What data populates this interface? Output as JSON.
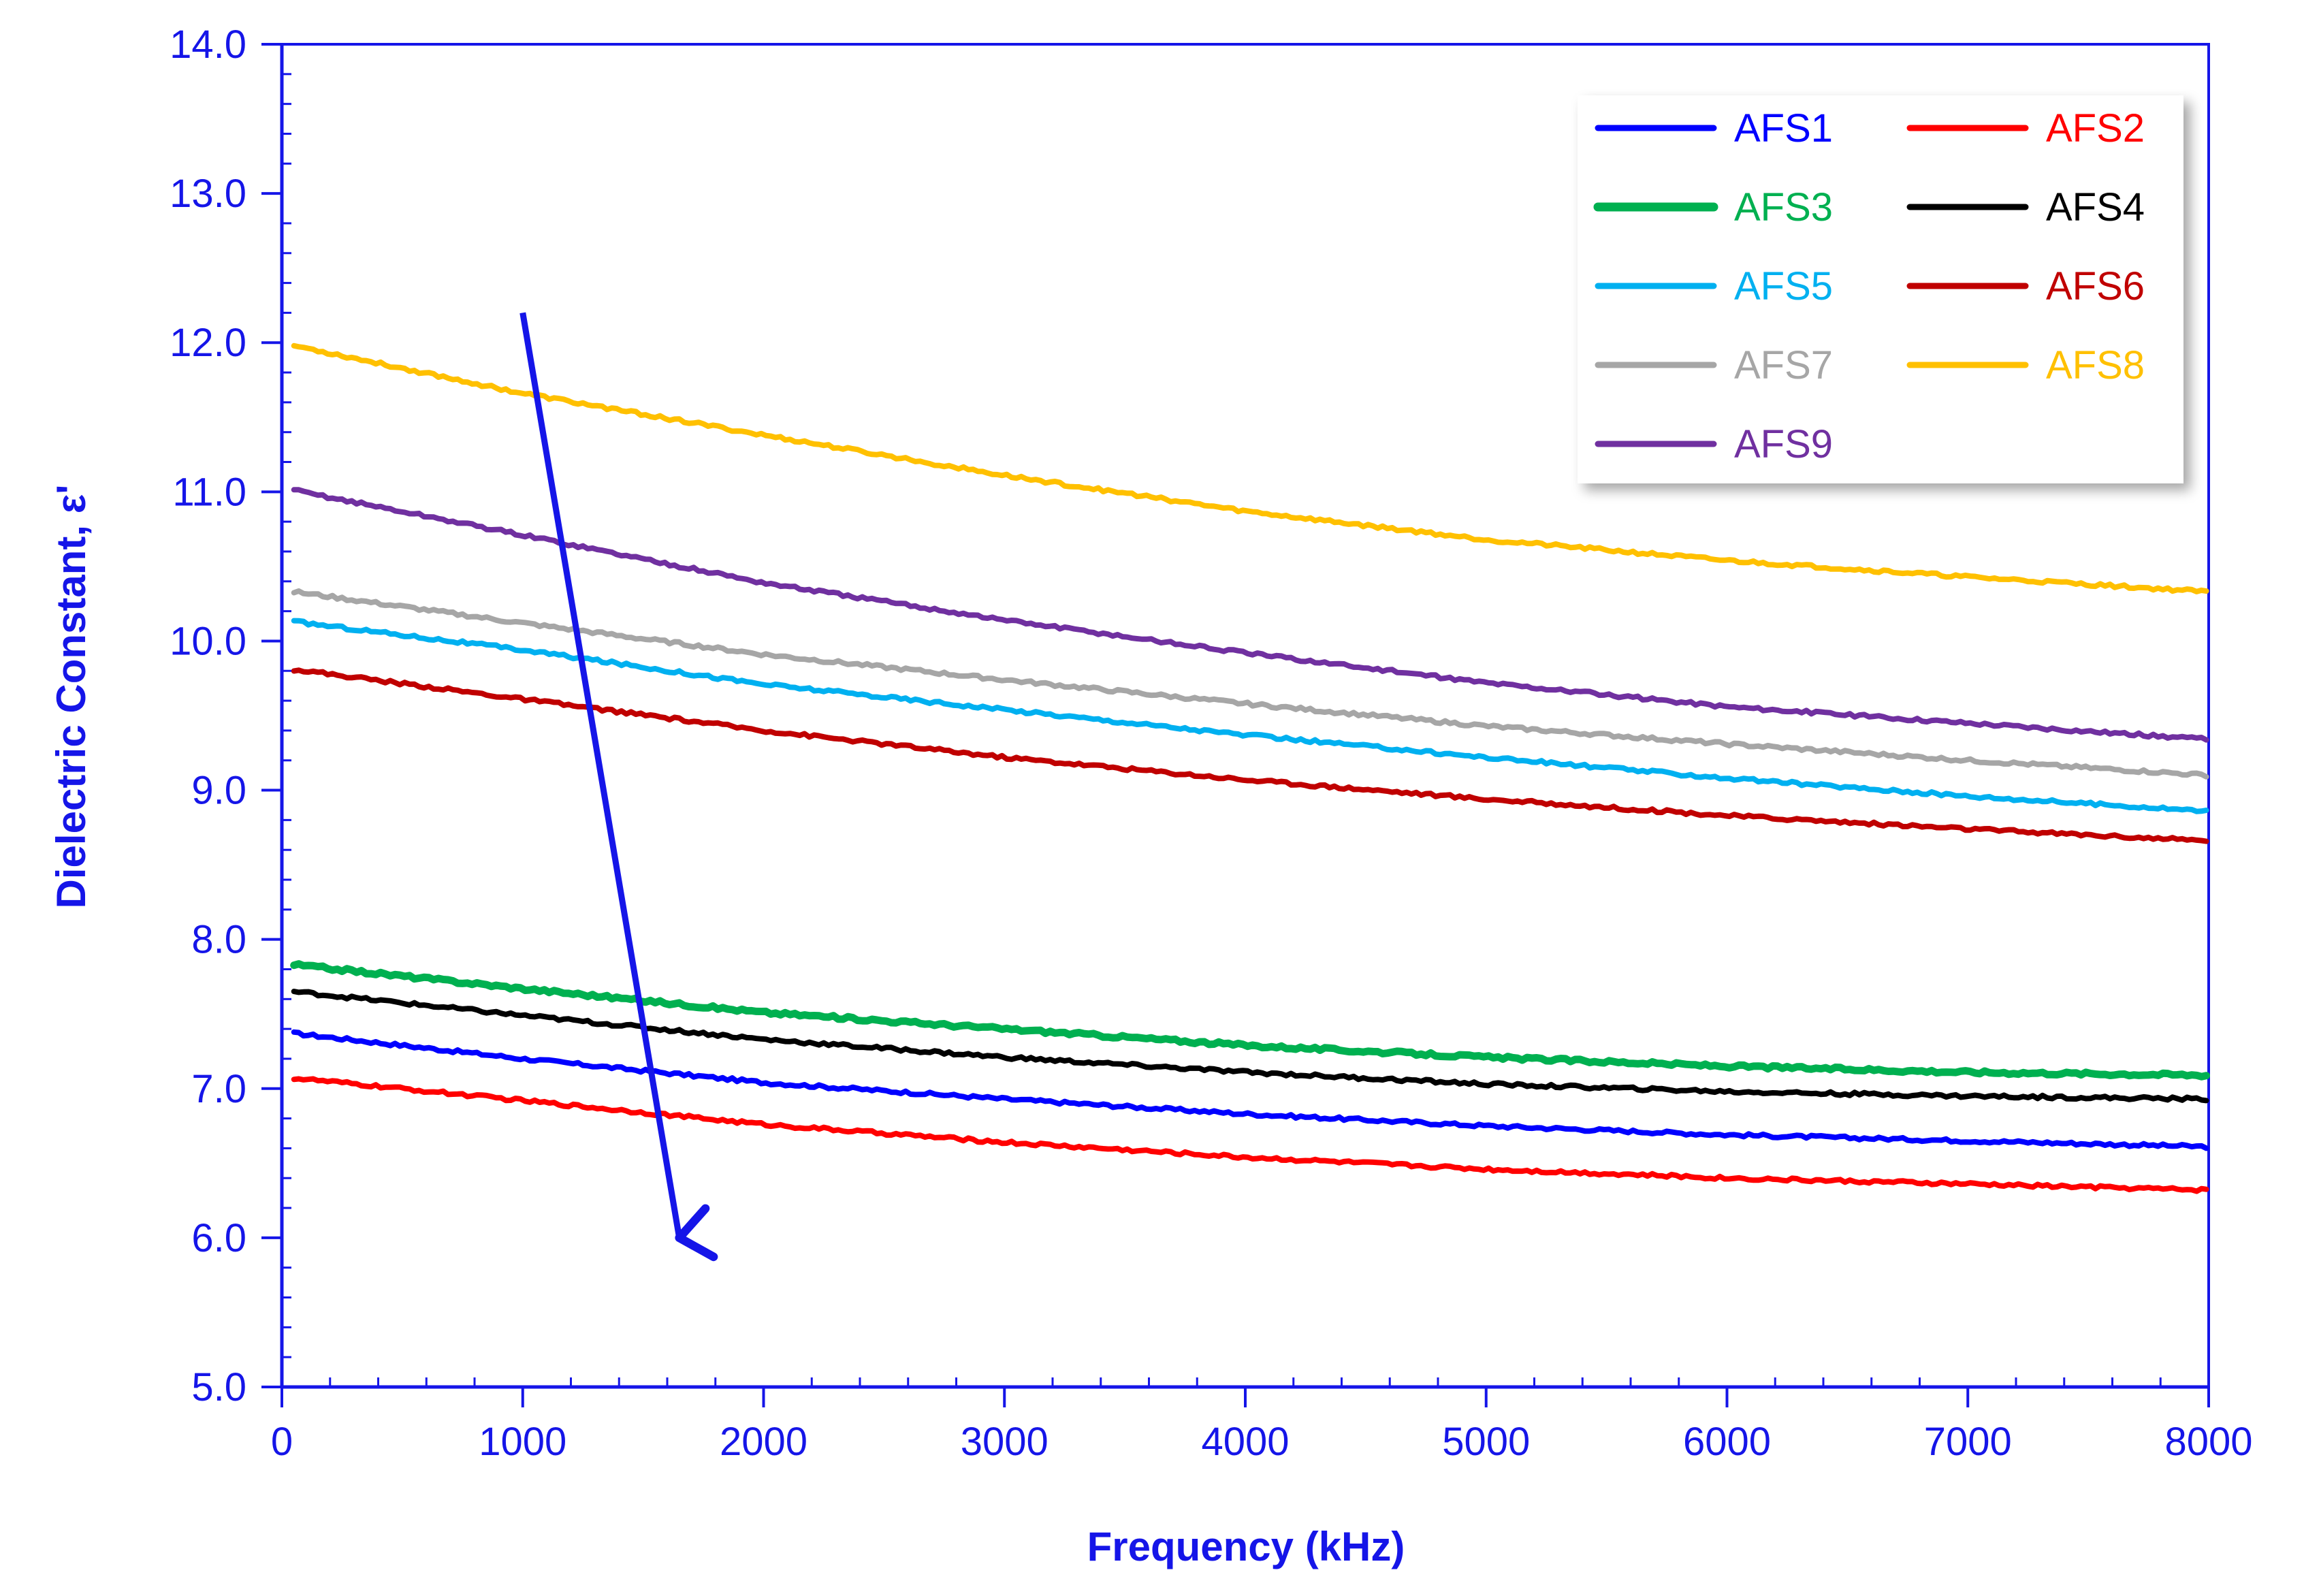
{
  "chart_data": {
    "type": "line",
    "xlabel": "Frequency (kHz)",
    "ylabel": "Dielectric Constant, ε'",
    "xlim": [
      0,
      8000
    ],
    "ylim": [
      5.0,
      14.0
    ],
    "x_ticks": [
      "0",
      "1000",
      "2000",
      "3000",
      "4000",
      "5000",
      "6000",
      "7000",
      "8000"
    ],
    "y_ticks": [
      "5.0",
      "6.0",
      "7.0",
      "8.0",
      "9.0",
      "10.0",
      "11.0",
      "12.0",
      "13.0",
      "14.0"
    ],
    "grid": false,
    "legend_position": "top-right",
    "axis_color": "#1515e8",
    "x": [
      50,
      1000,
      2000,
      3000,
      4000,
      5000,
      6000,
      7000,
      8000
    ],
    "series": [
      {
        "name": "AFS1",
        "color": "#0000ff",
        "values": [
          7.37,
          7.2,
          7.04,
          6.93,
          6.83,
          6.75,
          6.69,
          6.65,
          6.61
        ]
      },
      {
        "name": "AFS2",
        "color": "#ff0000",
        "values": [
          7.07,
          6.92,
          6.76,
          6.64,
          6.54,
          6.46,
          6.4,
          6.36,
          6.32
        ]
      },
      {
        "name": "AFS3",
        "color": "#00b050",
        "values": [
          7.83,
          7.67,
          7.51,
          7.4,
          7.29,
          7.21,
          7.15,
          7.11,
          7.09
        ]
      },
      {
        "name": "AFS4",
        "color": "#000000",
        "values": [
          7.65,
          7.49,
          7.33,
          7.21,
          7.11,
          7.03,
          6.98,
          6.95,
          6.93
        ]
      },
      {
        "name": "AFS5",
        "color": "#00b0f0",
        "values": [
          10.13,
          9.94,
          9.71,
          9.54,
          9.37,
          9.22,
          9.08,
          8.96,
          8.86
        ]
      },
      {
        "name": "AFS6",
        "color": "#c00000",
        "values": [
          9.81,
          9.61,
          9.4,
          9.22,
          9.07,
          8.94,
          8.83,
          8.74,
          8.66
        ]
      },
      {
        "name": "AFS7",
        "color": "#a6a6a6",
        "values": [
          10.33,
          10.12,
          9.91,
          9.74,
          9.58,
          9.43,
          9.31,
          9.2,
          9.1
        ]
      },
      {
        "name": "AFS8",
        "color": "#ffc000",
        "values": [
          11.98,
          11.66,
          11.38,
          11.11,
          10.87,
          10.68,
          10.54,
          10.43,
          10.33
        ]
      },
      {
        "name": "AFS9",
        "color": "#7030a0",
        "values": [
          11.01,
          10.71,
          10.39,
          10.14,
          9.92,
          9.72,
          9.56,
          9.45,
          9.34
        ]
      }
    ],
    "annotation_arrow": {
      "from": [
        1000,
        12.2
      ],
      "to": [
        1650,
        6.0
      ],
      "color": "#1515e8"
    }
  }
}
